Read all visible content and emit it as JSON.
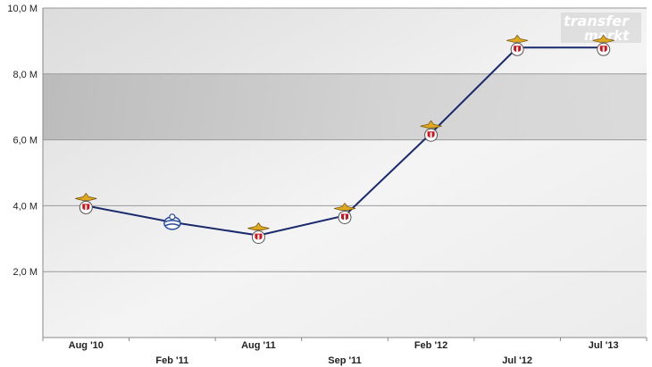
{
  "watermark": {
    "line1": "transfer",
    "line2": "markt"
  },
  "chart_data": {
    "type": "line",
    "title": "",
    "xlabel": "",
    "ylabel": "",
    "categories": [
      "Aug '10",
      "Feb '11",
      "Aug '11",
      "Sep '11",
      "Feb '12",
      "Jul '12",
      "Jul '13"
    ],
    "ylim": [
      0,
      10
    ],
    "y_ticks": [
      {
        "value": 2,
        "label": "2,0 M"
      },
      {
        "value": 4,
        "label": "4,0 M"
      },
      {
        "value": 6,
        "label": "6,0 M"
      },
      {
        "value": 8,
        "label": "8,0 M"
      },
      {
        "value": 10,
        "label": "10,0 M"
      }
    ],
    "series": [
      {
        "values": [
          4.0,
          3.5,
          3.1,
          3.7,
          6.2,
          8.8,
          8.8
        ],
        "point_icons": [
          "benfica-crest-icon",
          "bolton-crest-icon",
          "benfica-crest-icon",
          "benfica-crest-icon",
          "benfica-crest-icon",
          "benfica-crest-icon",
          "benfica-crest-icon"
        ],
        "color": "#1a2a6c"
      }
    ],
    "grid": true,
    "legend": "none",
    "colors": {
      "plot_bg": "#f2f2f2",
      "band_dark": "#b8b8b8",
      "line": "#1a2a6c",
      "benfica_red": "#d0121b",
      "benfica_gold": "#e0a81e",
      "bolton_blue": "#2a4f9c"
    }
  }
}
